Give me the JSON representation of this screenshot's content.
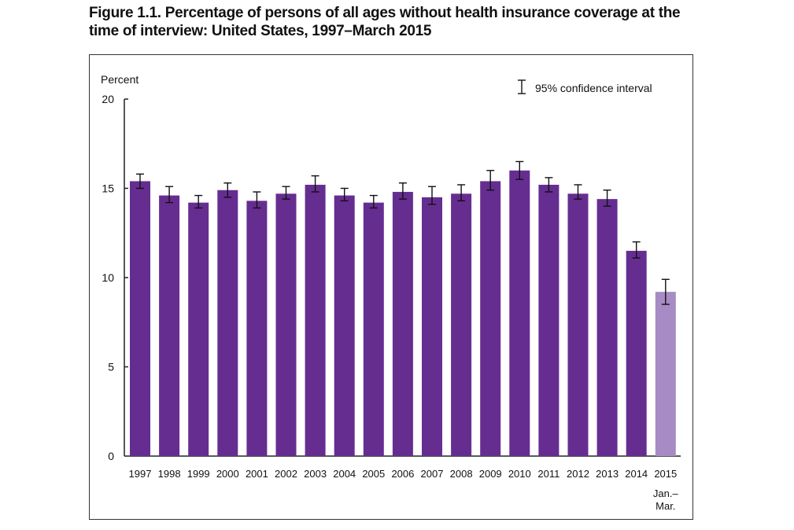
{
  "chart_data": {
    "type": "bar",
    "title": "Figure 1.1. Percentage of persons of all ages without health insurance coverage at the time of interview: United States, 1997–March 2015",
    "title_lines": [
      "Figure 1.1. Percentage of persons of all ages without health insurance coverage at the",
      "time of interview: United States, 1997–March 2015"
    ],
    "xlabel": "",
    "ylabel": "Percent",
    "ylim": [
      0,
      20
    ],
    "yticks": [
      0,
      5,
      10,
      15,
      20
    ],
    "grid": false,
    "categories": [
      "1997",
      "1998",
      "1999",
      "2000",
      "2001",
      "2002",
      "2003",
      "2004",
      "2005",
      "2006",
      "2007",
      "2008",
      "2009",
      "2010",
      "2011",
      "2012",
      "2013",
      "2014",
      "2015"
    ],
    "category_sublabels": {
      "2015": [
        "Jan.–",
        "Mar."
      ]
    },
    "values": [
      15.4,
      14.6,
      14.2,
      14.9,
      14.3,
      14.7,
      15.2,
      14.6,
      14.2,
      14.8,
      14.5,
      14.7,
      15.4,
      16.0,
      15.2,
      14.7,
      14.4,
      11.5,
      9.2
    ],
    "ci_lower": [
      15.0,
      14.2,
      13.9,
      14.5,
      13.9,
      14.4,
      14.8,
      14.3,
      13.9,
      14.4,
      14.1,
      14.3,
      14.9,
      15.5,
      14.8,
      14.4,
      14.0,
      11.1,
      8.5
    ],
    "ci_upper": [
      15.8,
      15.1,
      14.6,
      15.3,
      14.8,
      15.1,
      15.7,
      15.0,
      14.6,
      15.3,
      15.1,
      15.2,
      16.0,
      16.5,
      15.6,
      15.2,
      14.9,
      12.0,
      9.9
    ],
    "colors": {
      "primary": "#662d91",
      "highlight": "#a68bc4",
      "axis": "#222222"
    },
    "highlight_categories": [
      "2015"
    ],
    "legend": {
      "label": "95% confidence interval",
      "placement": "top-right",
      "symbol": "error-bar"
    }
  }
}
